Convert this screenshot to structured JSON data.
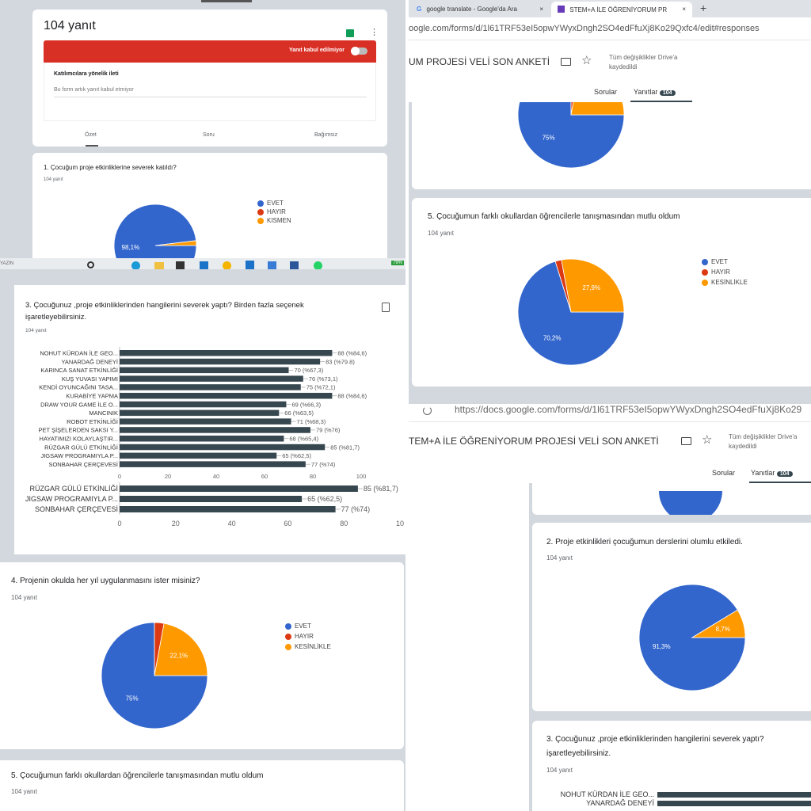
{
  "colors": {
    "evet": "#3366cc",
    "hayir": "#dc3912",
    "orange": "#ff9900",
    "bar": "#37474f",
    "banner": "#d93025"
  },
  "topleft": {
    "title": "104 yanıt",
    "sheets_icon": "sheets-icon",
    "more_icon": "more-vert-icon",
    "banner_label": "Yanıt kabul edilmiyor",
    "accepting_responses": false,
    "message_label": "Katılımcılara yönelik ileti",
    "message_value": "Bu form artık yanıt kabul etmiyor",
    "tabs": [
      "Özet",
      "Soru",
      "Bağımsız"
    ],
    "q1": {
      "title": "1. Çocuğum proje etkinliklerine severek katıldı?",
      "count": "104 yanıt",
      "legend": [
        "EVET",
        "HAYIR",
        "KISMEN"
      ],
      "values": [
        98.1,
        0,
        1.9
      ],
      "label": "98,1%"
    },
    "taskbar_left": "YAZIN",
    "battery": "79%"
  },
  "chart_data": [
    {
      "type": "bar",
      "orientation": "horizontal",
      "title": "3. Çocuğunuz ,proje etkinliklerinden hangilerini severek yaptı? Birden fazla seçenek işaretleyebilirsiniz.",
      "subtitle": "104 yanıt",
      "categories": [
        "NOHUT KÜRDAN İLE GEO...",
        "YANARDAĞ DENEYİ",
        "KARINCA SANAT ETKİNLİĞİ",
        "KUŞ YUVASI YAPIMI",
        "KENDİ OYUNCAĞINI TASA...",
        "KURABİYE YAPMA",
        "DRAW YOUR GAME İLE O...",
        "MANCINIK",
        "ROBOT ETKİNLİĞİ",
        "PET ŞİŞELERDEN SAKSI Y...",
        "HAYATIMIZI KOLAYLAŞTIR...",
        "RÜZGAR GÜLÜ ETKİNLİĞİ",
        "JIGSAW PROGRAMIYLA P...",
        "SONBAHAR ÇERÇEVESİ"
      ],
      "values": [
        88,
        83,
        70,
        76,
        75,
        88,
        69,
        66,
        71,
        79,
        68,
        85,
        65,
        77
      ],
      "labels": [
        "88 (%84,6)",
        "83 (%79.8)",
        "70 (%67,3)",
        "76 (%73,1)",
        "75 (%72,1)",
        "88 (%84,6)",
        "69 (%66,3)",
        "66 (%63,5)",
        "71 (%68,3)",
        "79 (%76)",
        "68 (%65,4)",
        "85 (%81,7)",
        "65 (%62,5)",
        "77 (%74)"
      ],
      "xlim": [
        0,
        100
      ],
      "ticks": [
        "0",
        "20",
        "40",
        "60",
        "80",
        "100"
      ]
    },
    {
      "type": "bar",
      "orientation": "horizontal",
      "categories": [
        "RÜZGAR GÜLÜ ETKİNLİĞİ",
        "JIGSAW PROGRAMIYLA P...",
        "SONBAHAR ÇERÇEVESİ"
      ],
      "values": [
        85,
        65,
        77
      ],
      "labels": [
        "85 (%81,7)",
        "65 (%62,5)",
        "77 (%74)"
      ],
      "xlim": [
        0,
        100
      ],
      "ticks": [
        "0",
        "20",
        "40",
        "60",
        "80",
        "10"
      ]
    },
    {
      "type": "pie",
      "title": "4. Projenin okulda her yıl uygulanmasını ister misiniz?",
      "subtitle": "104 yanıt",
      "legend": [
        "EVET",
        "HAYIR",
        "KESİNLİKLE"
      ],
      "values": [
        75,
        2.9,
        22.1
      ],
      "labels": [
        "75%",
        "",
        "22,1%"
      ]
    },
    {
      "type": "pie",
      "title": "5. Çocuğumun farklı okullardan öğrencilerle tanışmasından mutlu oldum",
      "subtitle": "104 yanıt",
      "legend": [
        "EVET",
        "HAYIR",
        "KESİNLİKLE"
      ],
      "values": [
        70.2,
        1.9,
        27.9
      ],
      "labels": [
        "70,2%",
        "",
        "27,9%"
      ]
    },
    {
      "type": "pie",
      "title": "2. Proje etkinlikleri çocuğumun derslerini olumlu etkiledi.",
      "subtitle": "104 yanıt",
      "values": [
        91.3,
        0,
        8.7
      ],
      "labels": [
        "91,3%",
        "",
        "8,7%"
      ]
    },
    {
      "type": "pie",
      "values": [
        75,
        2.9,
        22.1
      ],
      "labels": [
        "75%",
        "",
        ""
      ]
    }
  ],
  "leftbottom": {
    "q5_title": "5. Çocuğumun farklı okullardan öğrencilerle tanışmasından mutlu oldum",
    "q5_count": "104 yanıt"
  },
  "browser": {
    "tabs": [
      {
        "label": "google translate - Google'da Ara",
        "icon": "google-icon"
      },
      {
        "label": "STEM+A İLE ÖĞRENİYORUM PR",
        "icon": "forms-icon"
      }
    ],
    "new_tab": "+",
    "close": "×",
    "url1": "oogle.com/forms/d/1l61TRF53eI5opwYWyxDngh2SO4edFfuXj8Ko29Qxfc4/edit#responses",
    "url2": "https://docs.google.com/forms/d/1l61TRF53eI5opwYWyxDngh2SO4edFfuXj8Ko29",
    "form_title1": "UM PROJESİ VELİ SON ANKETİ",
    "form_title2": "TEM+A İLE ÖĞRENİYORUM PROJESİ VELİ SON ANKETİ",
    "saved": "Tüm değişiklikler Drive'a kaydedildi",
    "saved1": "Tüm değişiklikler Drive'a",
    "saved2": "kaydedildi",
    "tab_questions": "Sorular",
    "tab_responses": "Yanıtlar",
    "responses_count": "104"
  },
  "rightbottom": {
    "q3_title1": "3. Çocuğunuz ,proje etkinliklerinden hangilerini severek yaptı?",
    "q3_title2": "işaretleyebilirsiniz.",
    "q3_count": "104 yanıt",
    "rows": [
      "NOHUT KÜRDAN İLE GEO...",
      "YANARDAĞ DENEYİ"
    ]
  }
}
